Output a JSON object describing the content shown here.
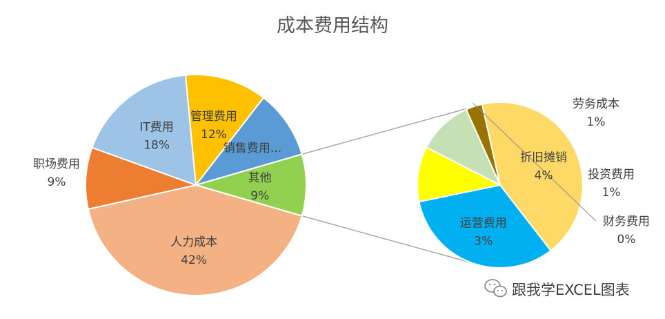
{
  "chart_data": {
    "type": "pie",
    "subtype": "pie-of-pie",
    "title": "成本费用结构",
    "main_pie": {
      "slices": [
        {
          "label": "人力成本",
          "value_text": "42%",
          "value": 42,
          "color": "#F4B183"
        },
        {
          "label": "职场费用",
          "value_text": "9%",
          "value": 9,
          "color": "#ED7D31"
        },
        {
          "label": "IT费用",
          "value_text": "18%",
          "value": 18,
          "color": "#9DC3E6"
        },
        {
          "label": "管理费用",
          "value_text": "12%",
          "value": 12,
          "color": "#FFC000"
        },
        {
          "label": "销售费用...",
          "value_text": "",
          "value": 10,
          "color": "#5B9BD5"
        },
        {
          "label": "其他",
          "value_text": "9%",
          "value": 9,
          "color": "#92D050"
        }
      ]
    },
    "secondary_pie": {
      "slices": [
        {
          "label": "运营费用",
          "value_text": "3%",
          "value": 3,
          "color": "#00B0F0"
        },
        {
          "label": "劳务成本",
          "value_text": "1%",
          "value": 1,
          "color": "#FFFF00"
        },
        {
          "label": "投资费用",
          "value_text": "1%",
          "value": 1,
          "color": "#C5E0B4"
        },
        {
          "label": "财务费用",
          "value_text": "0%",
          "value": 0.3,
          "color": "#997300"
        },
        {
          "label": "折旧摊销",
          "value_text": "4%",
          "value": 4,
          "color": "#FFD966"
        }
      ]
    }
  },
  "watermark": {
    "text": "跟我学EXCEL图表",
    "icon": "wechat-icon"
  },
  "colors": {
    "title": "#595959",
    "label": "#404040",
    "connector": "#A6A6A6",
    "slice_border": "#FFFFFF"
  }
}
